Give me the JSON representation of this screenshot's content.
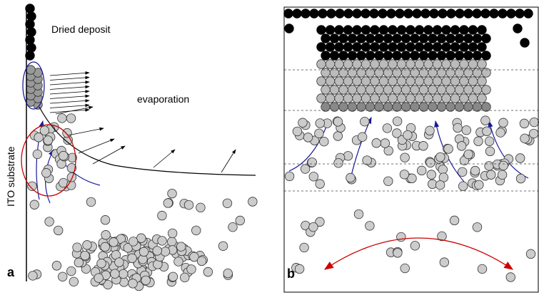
{
  "panel_a": {
    "label": "a",
    "deposit_label": "Dried deposit",
    "evaporation_label": "evaporation",
    "substrate_label": "ITO substrate"
  },
  "panel_b": {
    "label": "b"
  }
}
